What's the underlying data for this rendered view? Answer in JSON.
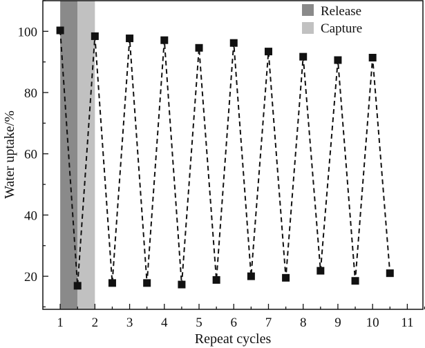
{
  "chart_data": {
    "type": "line",
    "title": "",
    "xlabel": "Repeat cycles",
    "ylabel": "Water uptake/%",
    "xlim": [
      0.5,
      11.45
    ],
    "ylim": [
      9.2,
      110
    ],
    "x_ticks": [
      1,
      2,
      3,
      4,
      5,
      6,
      7,
      8,
      9,
      10,
      11
    ],
    "y_ticks": [
      20,
      40,
      60,
      80,
      100
    ],
    "grid": false,
    "legend_position": "top-right",
    "shaded_regions": [
      {
        "name": "Release",
        "x_range": [
          1,
          1.5
        ],
        "color": "#8a8a8a"
      },
      {
        "name": "Capture",
        "x_range": [
          1.5,
          2
        ],
        "color": "#c1c1c1"
      }
    ],
    "series": [
      {
        "name": "Water uptake",
        "style": "dashed line with square markers",
        "color": "#111111",
        "x": [
          1,
          1.5,
          2,
          2.5,
          3,
          3.5,
          4,
          4.5,
          5,
          5.5,
          6,
          6.5,
          7,
          7.5,
          8,
          8.5,
          9,
          9.5,
          10,
          10.5
        ],
        "values": [
          100.3,
          16.9,
          98.4,
          17.8,
          97.7,
          17.8,
          97.1,
          17.3,
          94.6,
          18.8,
          96.2,
          20.0,
          93.4,
          19.5,
          91.7,
          21.8,
          90.6,
          18.5,
          91.4,
          21.0
        ]
      }
    ]
  }
}
